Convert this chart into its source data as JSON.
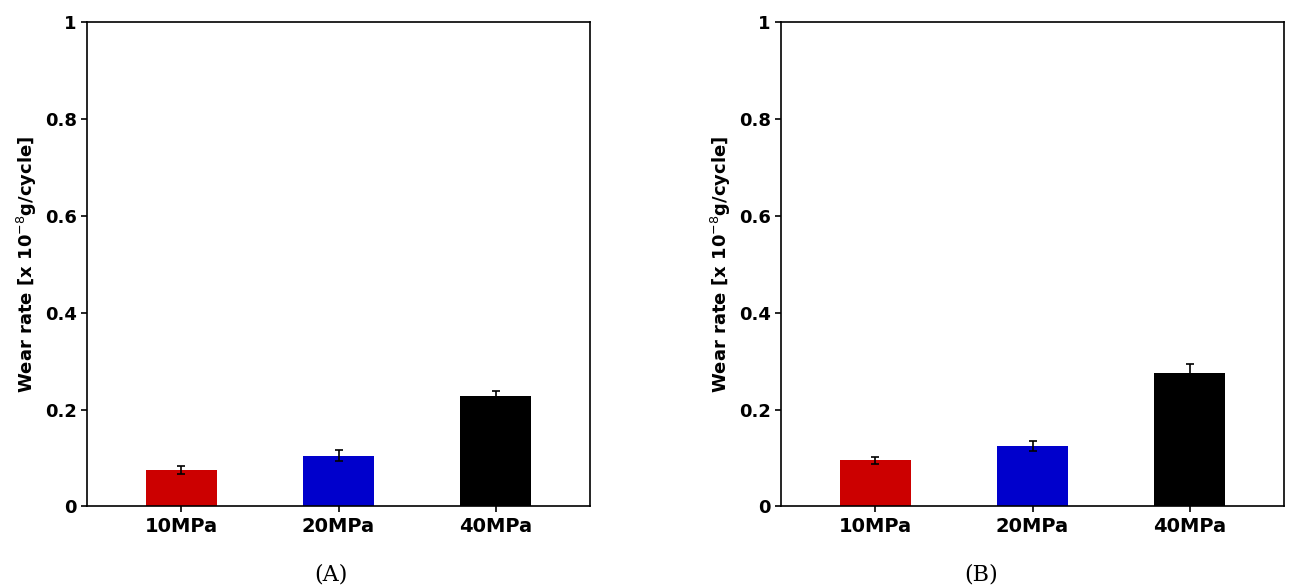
{
  "panel_A": {
    "categories": [
      "10MPa",
      "20MPa",
      "40MPa"
    ],
    "values": [
      0.075,
      0.105,
      0.228
    ],
    "errors": [
      0.008,
      0.012,
      0.01
    ],
    "colors": [
      "#cc0000",
      "#0000cc",
      "#000000"
    ]
  },
  "panel_B": {
    "categories": [
      "10MPa",
      "20MPa",
      "40MPa"
    ],
    "values": [
      0.095,
      0.125,
      0.275
    ],
    "errors": [
      0.008,
      0.01,
      0.018
    ],
    "colors": [
      "#cc0000",
      "#0000cc",
      "#000000"
    ]
  },
  "ylim": [
    0,
    1.0
  ],
  "yticks": [
    0,
    0.2,
    0.4,
    0.6,
    0.8,
    1.0
  ],
  "ytick_labels": [
    "0",
    "0.2",
    "0.4",
    "0.6",
    "0.8",
    "1"
  ],
  "label_A": "(A)",
  "label_B": "(B)",
  "bar_width": 0.45,
  "xlabel_fontsize": 14,
  "ylabel_fontsize": 13,
  "tick_fontsize": 13,
  "label_fontsize": 16,
  "background_color": "#ffffff"
}
